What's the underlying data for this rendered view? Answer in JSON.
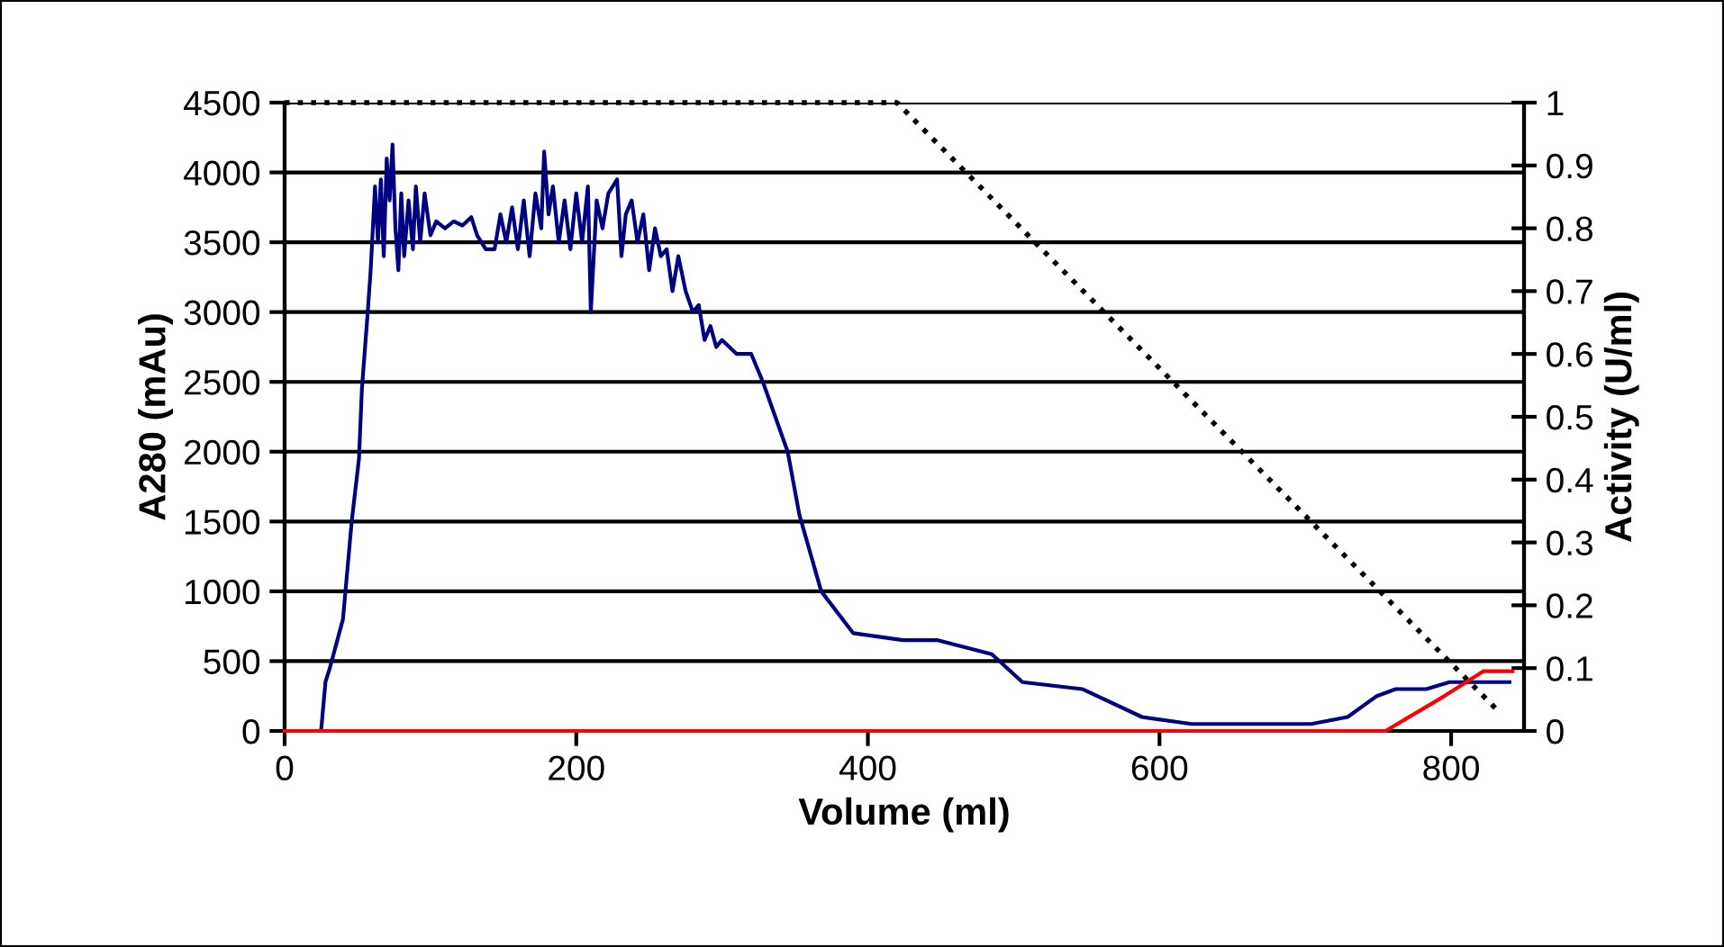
{
  "chart_data": {
    "type": "line",
    "xlabel": "Volume (ml)",
    "ylabel": "A280 (mAu)",
    "y2label": "Activity (U/ml)",
    "xlim": [
      0,
      850
    ],
    "xticks": [
      0,
      200,
      400,
      600,
      800
    ],
    "ylim": [
      0,
      4500
    ],
    "yticks": [
      0,
      500,
      1000,
      1500,
      2000,
      2500,
      3000,
      3500,
      4000,
      4500
    ],
    "y2lim": [
      0,
      1
    ],
    "y2ticks": [
      0,
      0.1,
      0.2,
      0.3,
      0.4,
      0.5,
      0.6,
      0.7,
      0.8,
      0.9,
      1
    ],
    "grid": "y",
    "marker": "none",
    "series": [
      {
        "color": "#000080",
        "line_style": "solid",
        "axis": "y",
        "x": [
          0,
          25,
          28,
          31,
          40,
          46,
          51,
          53,
          57,
          59,
          62,
          64,
          66,
          68,
          70,
          72,
          74,
          76,
          78,
          80,
          82,
          85,
          88,
          90,
          93,
          96,
          100,
          104,
          110,
          116,
          122,
          128,
          132,
          138,
          144,
          148,
          152,
          156,
          160,
          164,
          168,
          172,
          176,
          178,
          181,
          184,
          188,
          192,
          196,
          200,
          204,
          208,
          210,
          214,
          218,
          222,
          228,
          231,
          234,
          238,
          242,
          246,
          250,
          254,
          258,
          262,
          266,
          270,
          275,
          280,
          284,
          288,
          292,
          296,
          300,
          310,
          320,
          328,
          345,
          353,
          368,
          390,
          424,
          448,
          485,
          506,
          547,
          588,
          622,
          704,
          729,
          749,
          762,
          783,
          799,
          820,
          840
        ],
        "values": [
          0,
          0,
          350,
          450,
          800,
          1500,
          1950,
          2450,
          3000,
          3300,
          3900,
          3500,
          3950,
          3400,
          4100,
          3800,
          4200,
          3600,
          3300,
          3850,
          3400,
          3800,
          3450,
          3900,
          3500,
          3850,
          3550,
          3650,
          3600,
          3650,
          3620,
          3680,
          3550,
          3450,
          3450,
          3700,
          3500,
          3750,
          3450,
          3800,
          3400,
          3850,
          3600,
          4150,
          3700,
          3900,
          3500,
          3800,
          3450,
          3850,
          3500,
          3900,
          3000,
          3800,
          3600,
          3850,
          3950,
          3400,
          3700,
          3800,
          3500,
          3700,
          3300,
          3600,
          3400,
          3450,
          3150,
          3400,
          3150,
          3000,
          3050,
          2800,
          2900,
          2750,
          2800,
          2700,
          2700,
          2500,
          2000,
          1550,
          1000,
          700,
          650,
          650,
          550,
          350,
          300,
          100,
          50,
          50,
          100,
          250,
          300,
          300,
          350,
          350,
          350
        ]
      },
      {
        "color": "#000000",
        "line_style": "dotted",
        "axis": "y2",
        "x": [
          0,
          420,
          833
        ],
        "values": [
          1,
          1,
          0.03
        ]
      },
      {
        "color": "#ff0000",
        "line_style": "solid",
        "axis": "y2",
        "x": [
          0,
          755,
          795,
          822,
          842
        ],
        "values": [
          0,
          0,
          0.055,
          0.095,
          0.095
        ]
      }
    ]
  }
}
